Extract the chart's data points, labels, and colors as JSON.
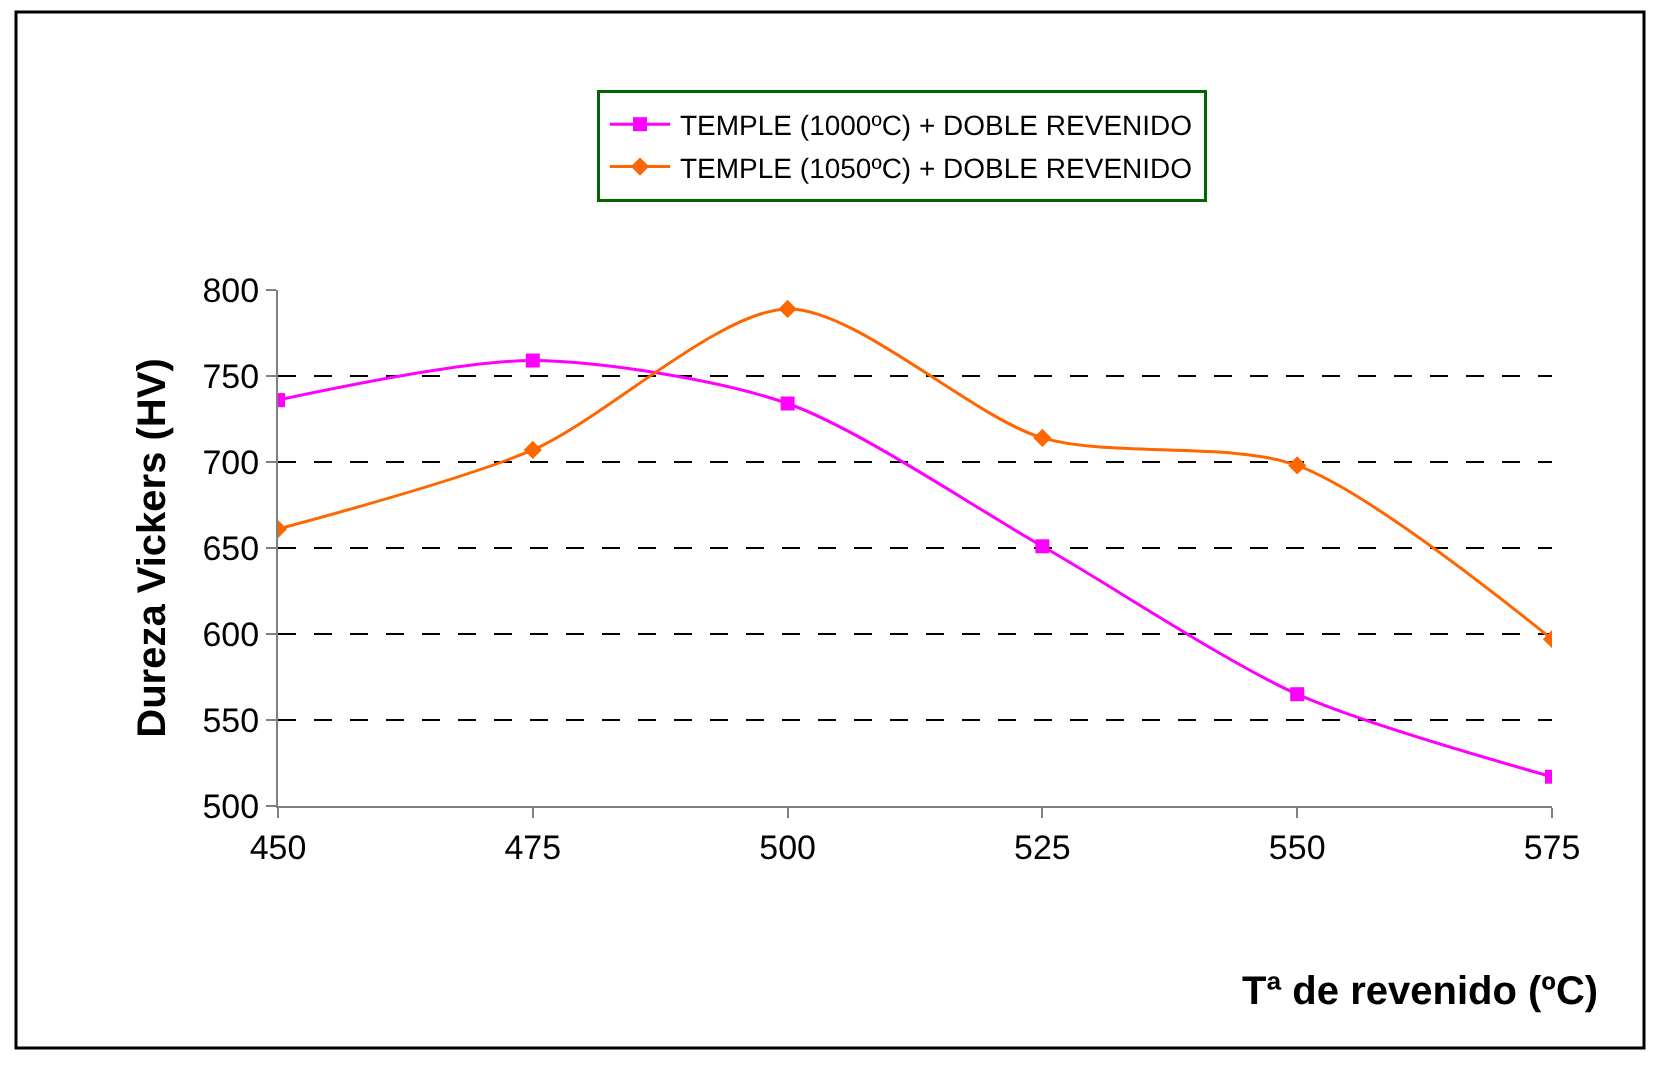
{
  "chart_data": {
    "type": "line",
    "xlabel": "Tª de revenido (ºC)",
    "ylabel": "Dureza Vickers (HV)",
    "x": [
      450,
      475,
      500,
      525,
      550,
      575
    ],
    "series": [
      {
        "name": "TEMPLE (1000ºC) + DOBLE REVENIDO",
        "color": "#ff00ff",
        "marker": "square",
        "values": [
          736,
          759,
          734,
          651,
          565,
          517
        ]
      },
      {
        "name": "TEMPLE (1050ºC) + DOBLE REVENIDO",
        "color": "#ff6600",
        "marker": "diamond",
        "values": [
          661,
          707,
          789,
          714,
          698,
          597
        ]
      }
    ],
    "xlim": [
      450,
      575
    ],
    "xticks": [
      450,
      475,
      500,
      525,
      550,
      575
    ],
    "ylim": [
      500,
      800
    ],
    "yticks": [
      500,
      550,
      600,
      650,
      700,
      750,
      800
    ],
    "grid": "y",
    "legend": "top",
    "line_style": "solid"
  }
}
